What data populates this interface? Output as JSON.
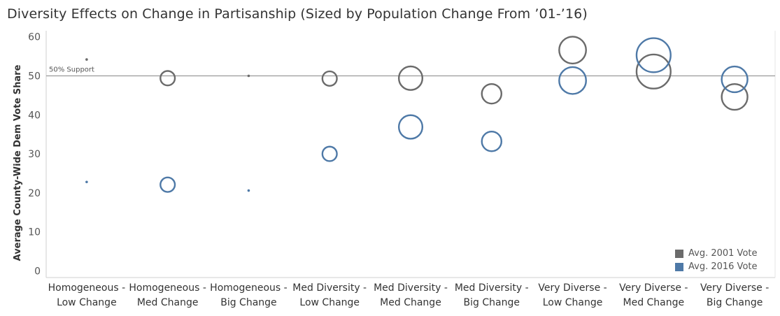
{
  "title": "Diversity Effects on Change in Partisanship (Sized by Population Change From ’01-’16)",
  "chart_data": {
    "type": "scatter",
    "title": "Diversity Effects on Change in Partisanship (Sized by Population Change From ’01-’16)",
    "xlabel": "",
    "ylabel": "Average County-Wide Dem Vote Share",
    "ylim": [
      0,
      60
    ],
    "yticks": [
      0,
      10,
      20,
      30,
      40,
      50,
      60
    ],
    "grid": false,
    "legend_position": "bottom-right",
    "reference_line": {
      "value": 50,
      "label": "50% Support"
    },
    "categories": [
      [
        "Homogeneous -",
        "Low Change"
      ],
      [
        "Homogeneous -",
        "Med Change"
      ],
      [
        "Homogeneous -",
        "Big Change"
      ],
      [
        "Med Diversity -",
        "Low Change"
      ],
      [
        "Med Diversity -",
        "Med Change"
      ],
      [
        "Med Diversity -",
        "Big Change"
      ],
      [
        "Very Diverse -",
        "Low Change"
      ],
      [
        "Very Diverse -",
        "Med Change"
      ],
      [
        "Very Diverse -",
        "Big Change"
      ]
    ],
    "size_encoding": "population change",
    "sizes": [
      1,
      3,
      1,
      3,
      9,
      6,
      12,
      20,
      11
    ],
    "series": [
      {
        "name": "Avg. 2001 Vote",
        "color": "#6b6b6b",
        "values": [
          54.2,
          49.4,
          50.0,
          49.3,
          49.4,
          45.4,
          56.6,
          51.1,
          44.6
        ]
      },
      {
        "name": "Avg. 2016 Vote",
        "color": "#4e79a7",
        "values": [
          22.8,
          22.1,
          20.6,
          30.0,
          36.9,
          33.2,
          48.8,
          55.3,
          49.1
        ]
      }
    ]
  }
}
